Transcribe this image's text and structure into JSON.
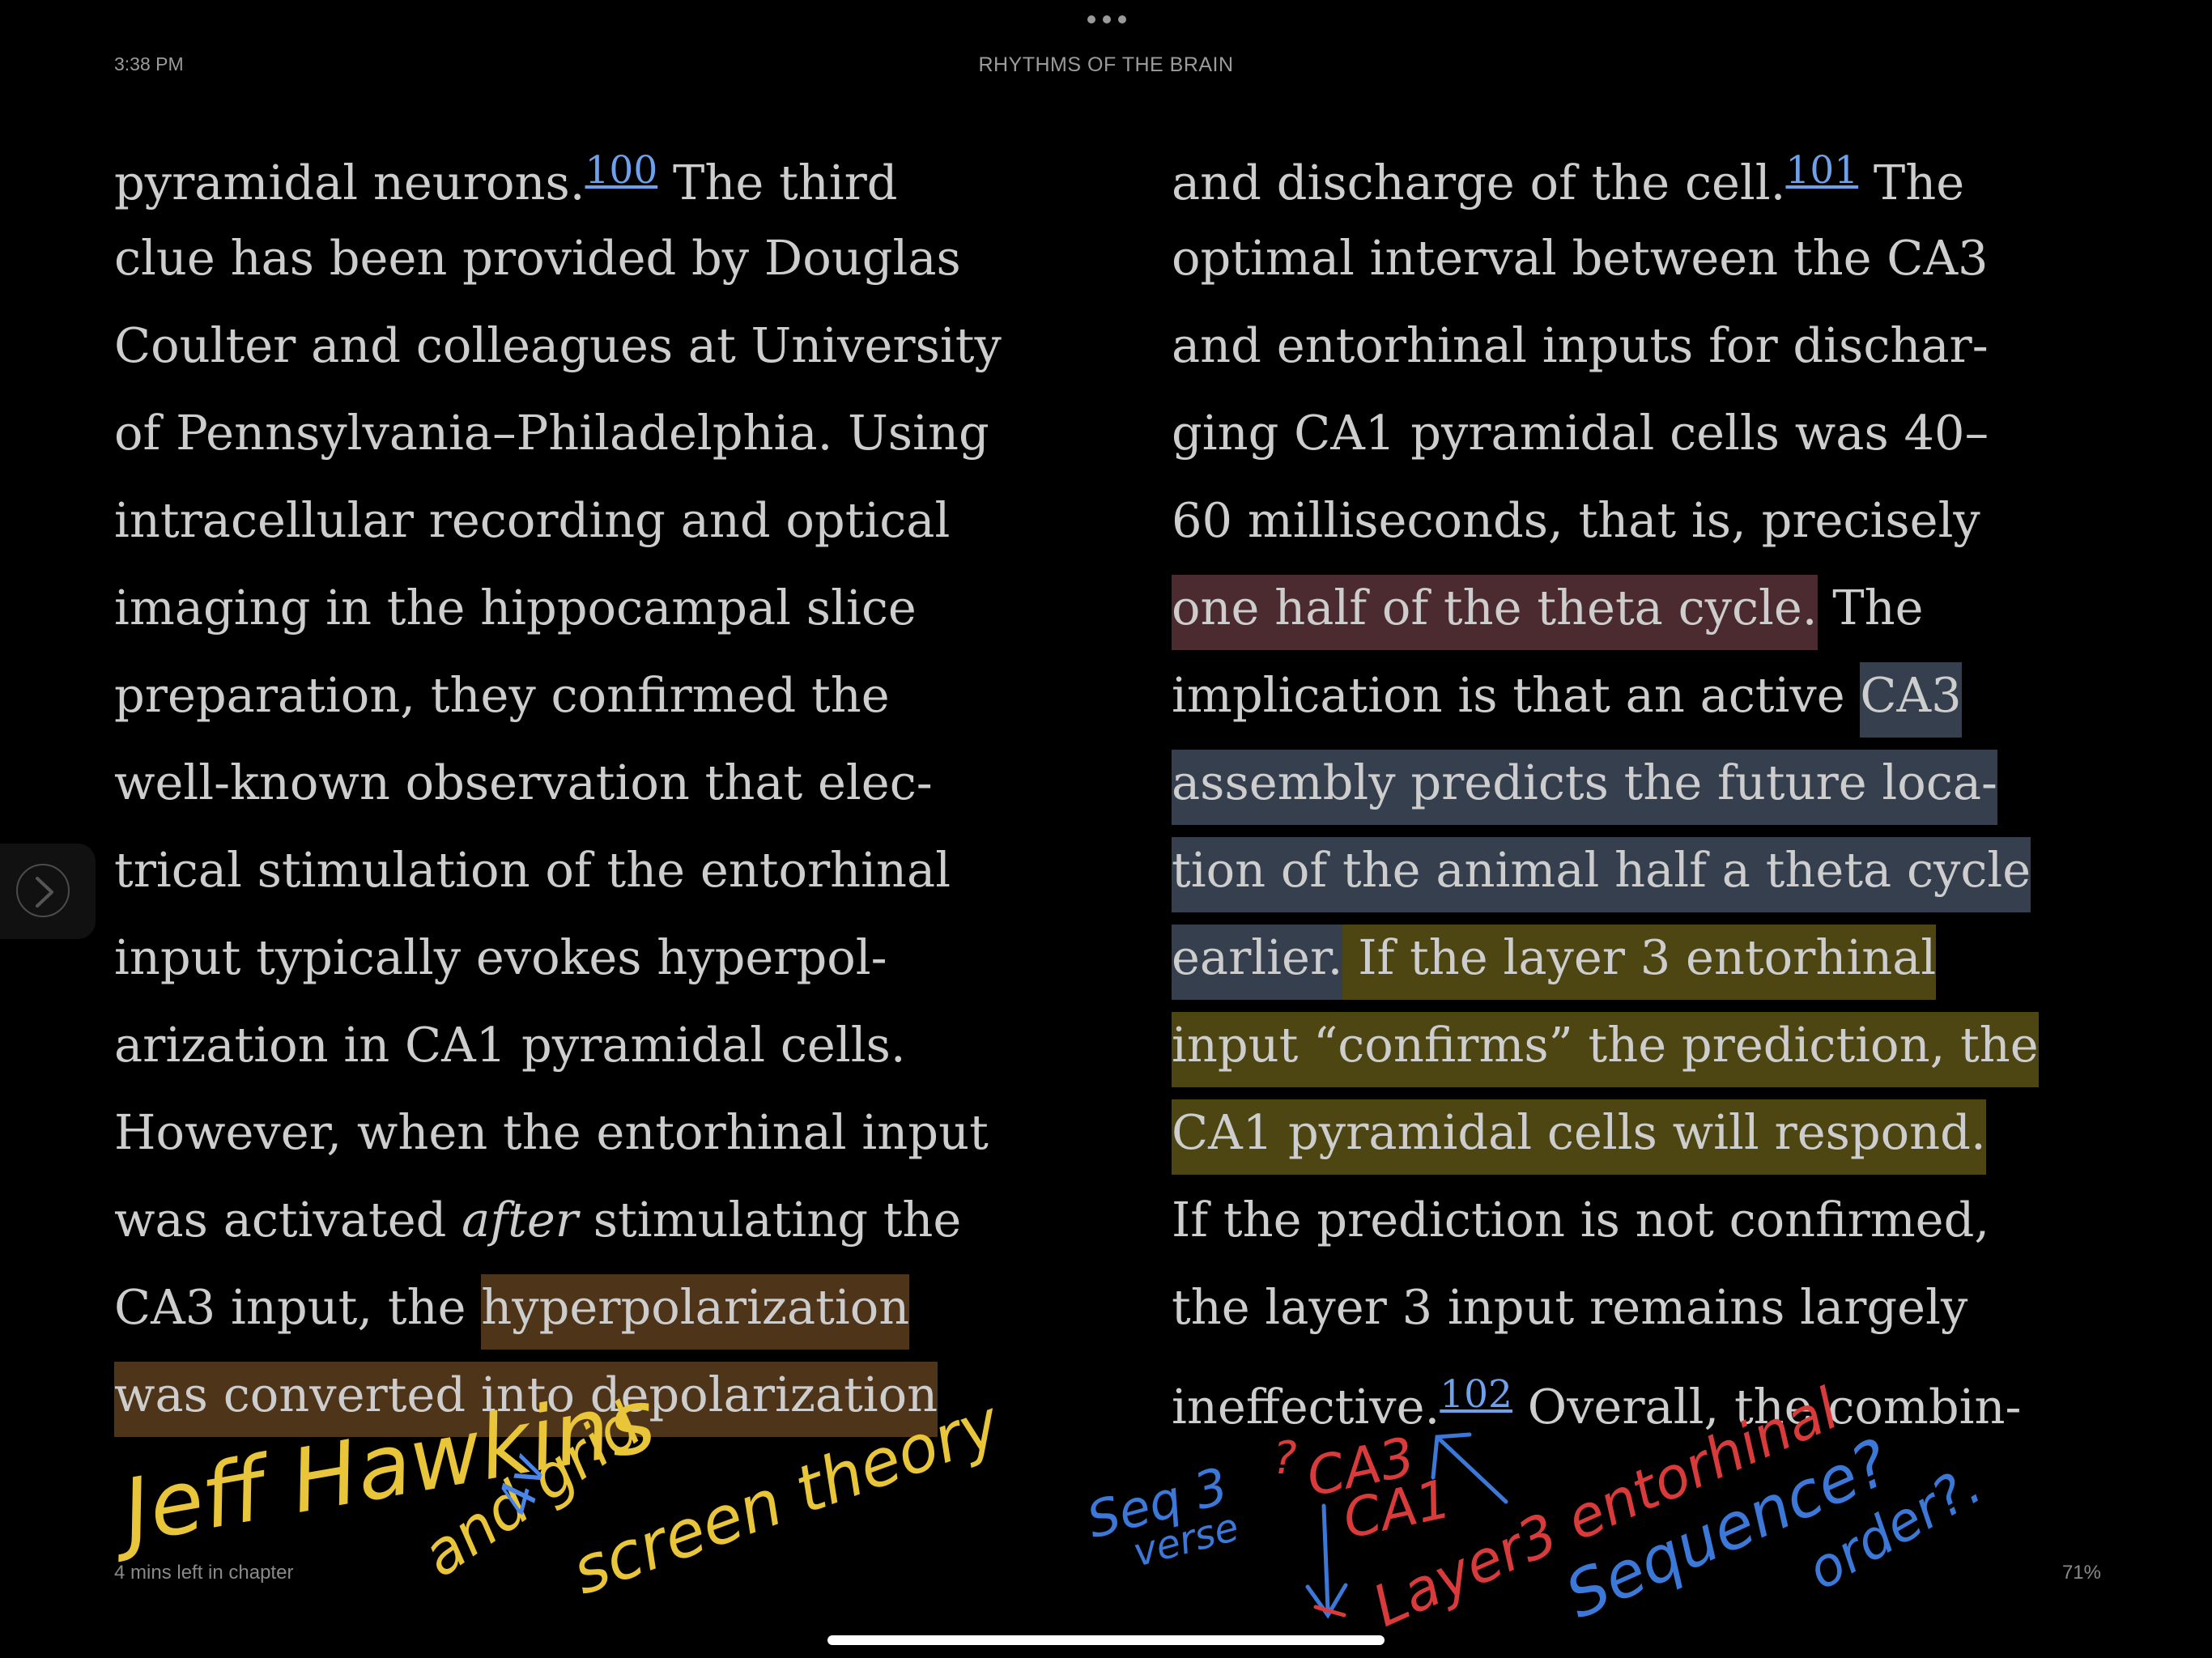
{
  "status": {
    "time": "3:38 PM"
  },
  "header": {
    "book_title": "RHYTHMS OF THE BRAIN"
  },
  "footer": {
    "time_left": "4 mins left in chapter",
    "progress": "71%"
  },
  "colors": {
    "highlight_red": "#4c2b30",
    "highlight_blue": "#353f4d",
    "highlight_yellow": "#4d4613",
    "highlight_orange": "#4e3519",
    "footnote_link": "#6fa1ea"
  },
  "icons": {
    "menu": "more-dots-icon",
    "next_page": "chevron-right-icon"
  },
  "left_page": {
    "l1_a": "pyramidal neurons.",
    "l1_fn": "100",
    "l1_b": " The third",
    "l2": "clue has been provided by Douglas",
    "l3": "Coulter and colleagues at University",
    "l4": "of Pennsylvania–Philadelphia. Using",
    "l5": "intracellular recording and optical",
    "l6": "imaging in the hippocampal slice",
    "l7": "preparation, they confirmed the",
    "l8": "well-known observation that elec-",
    "l9": "trical stimulation of the entorhinal",
    "l10": "input typically evokes hyperpol-",
    "l11": "arization in CA1 pyramidal cells.",
    "l12": "However, when the entorhinal input",
    "l13_a": "was activated ",
    "l13_em": "after",
    "l13_b": " stimulating the",
    "l14_a": "CA3 input, the ",
    "l14_hl": "hyperpolarization",
    "l15_hl": "was converted into depolarization"
  },
  "right_page": {
    "l1_a": "and discharge of the cell.",
    "l1_fn": "101",
    "l1_b": " The",
    "l2": "optimal interval between the CA3",
    "l3": "and entorhinal inputs for dischar-",
    "l4": "ging CA1 pyramidal cells was 40–",
    "l5": "60 milliseconds, that is, precisely",
    "l6_hl": "one half of the theta cycle.",
    "l6_b": " The",
    "l7_a": "implication is that an active ",
    "l7_hl": "CA3",
    "l8_hl": "assembly predicts the future loca-",
    "l9_hl": "tion of the animal half a theta cycle",
    "l10_hl_blue": "earlier.",
    "l10_hl_yellow": " If the layer 3 entorhinal",
    "l11_hl": "input “confirms” the prediction, the",
    "l12_hl": "CA1 pyramidal cells will respond.",
    "l13": "If the prediction is not confirmed,",
    "l14": "the layer 3 input remains largely",
    "l15_a": "ineffective.",
    "l15_fn": "102",
    "l15_b": " Overall, the combin-"
  },
  "handwriting": {
    "note_1": "Jeff Hawkins",
    "note_2": "and grid",
    "note_3": "4v",
    "note_4": "screen theory",
    "note_5": "Seq 3",
    "note_6": "verse",
    "note_7": "?",
    "note_8": "CA3",
    "note_9": "CA1",
    "note_10": "Layer3 entorhinal",
    "note_11": "Sequence?",
    "note_12": "order?."
  }
}
